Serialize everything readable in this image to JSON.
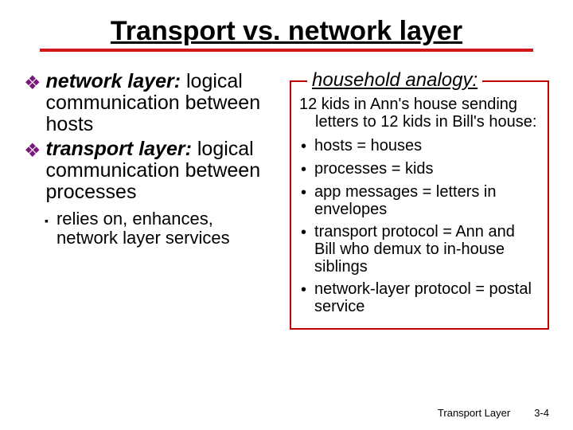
{
  "title": "Transport vs. network layer",
  "left": {
    "items": [
      {
        "term": "network layer:",
        "desc": "logical communication between hosts"
      },
      {
        "term": "transport layer:",
        "desc": "logical communication between processes"
      }
    ],
    "sub": "relies on, enhances, network layer services"
  },
  "right": {
    "boxTitle": "household analogy:",
    "intro": "12 kids in Ann's house sending letters to 12 kids in Bill's house:",
    "bullets": [
      "hosts = houses",
      "processes = kids",
      "app messages = letters in envelopes",
      "transport protocol = Ann and Bill who demux to in-house siblings",
      "network-layer protocol = postal service"
    ]
  },
  "footer": {
    "label": "Transport Layer",
    "page": "3-4"
  },
  "colors": {
    "titleUnderline": "#d01818",
    "diamond": "#7a187a",
    "box": "#c00000"
  }
}
